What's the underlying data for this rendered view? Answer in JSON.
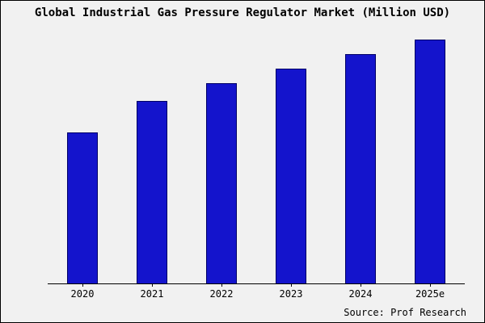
{
  "chart_data": {
    "type": "bar",
    "title": "Global Industrial Gas Pressure Regulator Market (Million USD)",
    "categories": [
      "2020",
      "2021",
      "2022",
      "2023",
      "2024",
      "2025e"
    ],
    "values": [
      62,
      75,
      82,
      88,
      94,
      100
    ],
    "xlabel": "",
    "ylabel": "",
    "ylim": [
      0,
      100
    ],
    "grid": false,
    "legend_position": "none",
    "bar_color": "#1414cc",
    "bar_border_color": "#000066",
    "background_color": "#f1f1f1"
  },
  "source": "Source: Prof Research"
}
